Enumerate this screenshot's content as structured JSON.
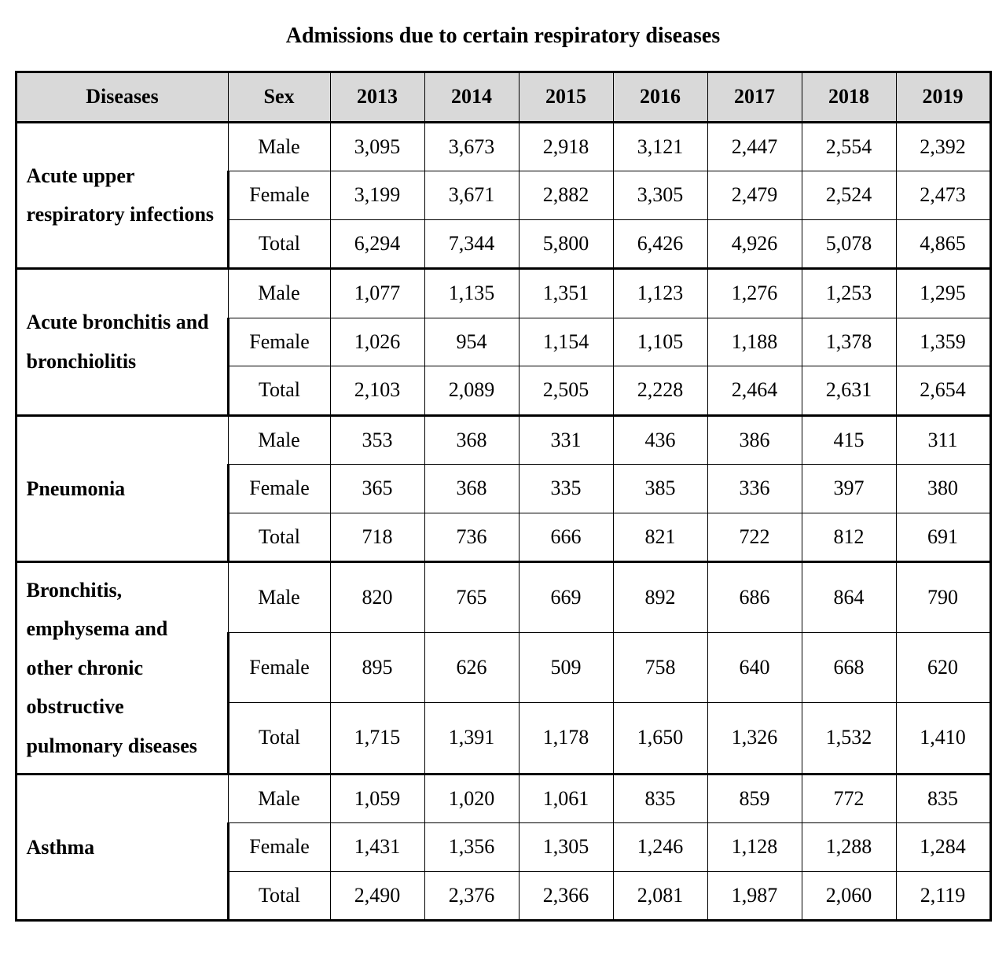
{
  "title": "Admissions due to certain respiratory diseases",
  "table": {
    "type": "table",
    "background_color": "#ffffff",
    "header_background": "#d9d9d9",
    "border_color": "#000000",
    "font_family": "Times New Roman",
    "title_fontsize": 28,
    "header_fontsize": 26,
    "cell_fontsize": 26,
    "columns": {
      "disease_header": "Diseases",
      "sex_header": "Sex",
      "years": [
        "2013",
        "2014",
        "2015",
        "2016",
        "2017",
        "2018",
        "2019"
      ]
    },
    "sex_labels": [
      "Male",
      "Female",
      "Total"
    ],
    "groups": [
      {
        "disease": "Acute upper respiratory infections",
        "rows": [
          [
            "3,095",
            "3,673",
            "2,918",
            "3,121",
            "2,447",
            "2,554",
            "2,392"
          ],
          [
            "3,199",
            "3,671",
            "2,882",
            "3,305",
            "2,479",
            "2,524",
            "2,473"
          ],
          [
            "6,294",
            "7,344",
            "5,800",
            "6,426",
            "4,926",
            "5,078",
            "4,865"
          ]
        ]
      },
      {
        "disease": "Acute bronchitis and bronchiolitis",
        "rows": [
          [
            "1,077",
            "1,135",
            "1,351",
            "1,123",
            "1,276",
            "1,253",
            "1,295"
          ],
          [
            "1,026",
            "954",
            "1,154",
            "1,105",
            "1,188",
            "1,378",
            "1,359"
          ],
          [
            "2,103",
            "2,089",
            "2,505",
            "2,228",
            "2,464",
            "2,631",
            "2,654"
          ]
        ]
      },
      {
        "disease": "Pneumonia",
        "rows": [
          [
            "353",
            "368",
            "331",
            "436",
            "386",
            "415",
            "311"
          ],
          [
            "365",
            "368",
            "335",
            "385",
            "336",
            "397",
            "380"
          ],
          [
            "718",
            "736",
            "666",
            "821",
            "722",
            "812",
            "691"
          ]
        ]
      },
      {
        "disease": "Bronchitis, emphysema and other chronic obstructive pulmonary diseases",
        "rows": [
          [
            "820",
            "765",
            "669",
            "892",
            "686",
            "864",
            "790"
          ],
          [
            "895",
            "626",
            "509",
            "758",
            "640",
            "668",
            "620"
          ],
          [
            "1,715",
            "1,391",
            "1,178",
            "1,650",
            "1,326",
            "1,532",
            "1,410"
          ]
        ]
      },
      {
        "disease": "Asthma",
        "rows": [
          [
            "1,059",
            "1,020",
            "1,061",
            "835",
            "859",
            "772",
            "835"
          ],
          [
            "1,431",
            "1,356",
            "1,305",
            "1,246",
            "1,128",
            "1,288",
            "1,284"
          ],
          [
            "2,490",
            "2,376",
            "2,366",
            "2,081",
            "1,987",
            "2,060",
            "2,119"
          ]
        ]
      }
    ]
  }
}
